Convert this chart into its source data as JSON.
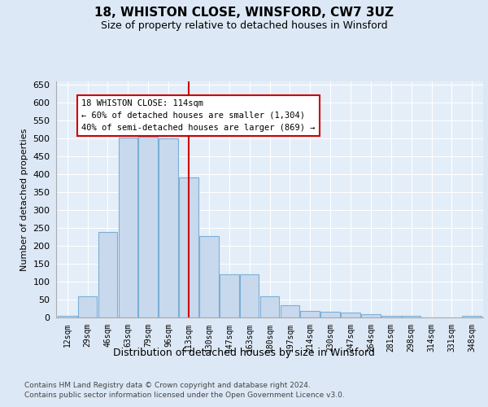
{
  "title1": "18, WHISTON CLOSE, WINSFORD, CW7 3UZ",
  "title2": "Size of property relative to detached houses in Winsford",
  "xlabel": "Distribution of detached houses by size in Winsford",
  "ylabel": "Number of detached properties",
  "categories": [
    "12sqm",
    "29sqm",
    "46sqm",
    "63sqm",
    "79sqm",
    "96sqm",
    "113sqm",
    "130sqm",
    "147sqm",
    "163sqm",
    "180sqm",
    "197sqm",
    "214sqm",
    "230sqm",
    "247sqm",
    "264sqm",
    "281sqm",
    "298sqm",
    "314sqm",
    "331sqm",
    "348sqm"
  ],
  "values": [
    4,
    60,
    238,
    503,
    505,
    500,
    392,
    228,
    120,
    120,
    60,
    35,
    18,
    15,
    14,
    10,
    5,
    4,
    1,
    0,
    4
  ],
  "bar_color": "#c8d9ee",
  "bar_edge_color": "#7bafd4",
  "vline_index": 6,
  "vline_color": "#cc0000",
  "annotation_text": "18 WHISTON CLOSE: 114sqm\n← 60% of detached houses are smaller (1,304)\n40% of semi-detached houses are larger (869) →",
  "ylim": [
    0,
    660
  ],
  "yticks": [
    0,
    50,
    100,
    150,
    200,
    250,
    300,
    350,
    400,
    450,
    500,
    550,
    600,
    650
  ],
  "footer1": "Contains HM Land Registry data © Crown copyright and database right 2024.",
  "footer2": "Contains public sector information licensed under the Open Government Licence v3.0.",
  "bg_color": "#dce8f5",
  "plot_bg_color": "#e4eef8"
}
